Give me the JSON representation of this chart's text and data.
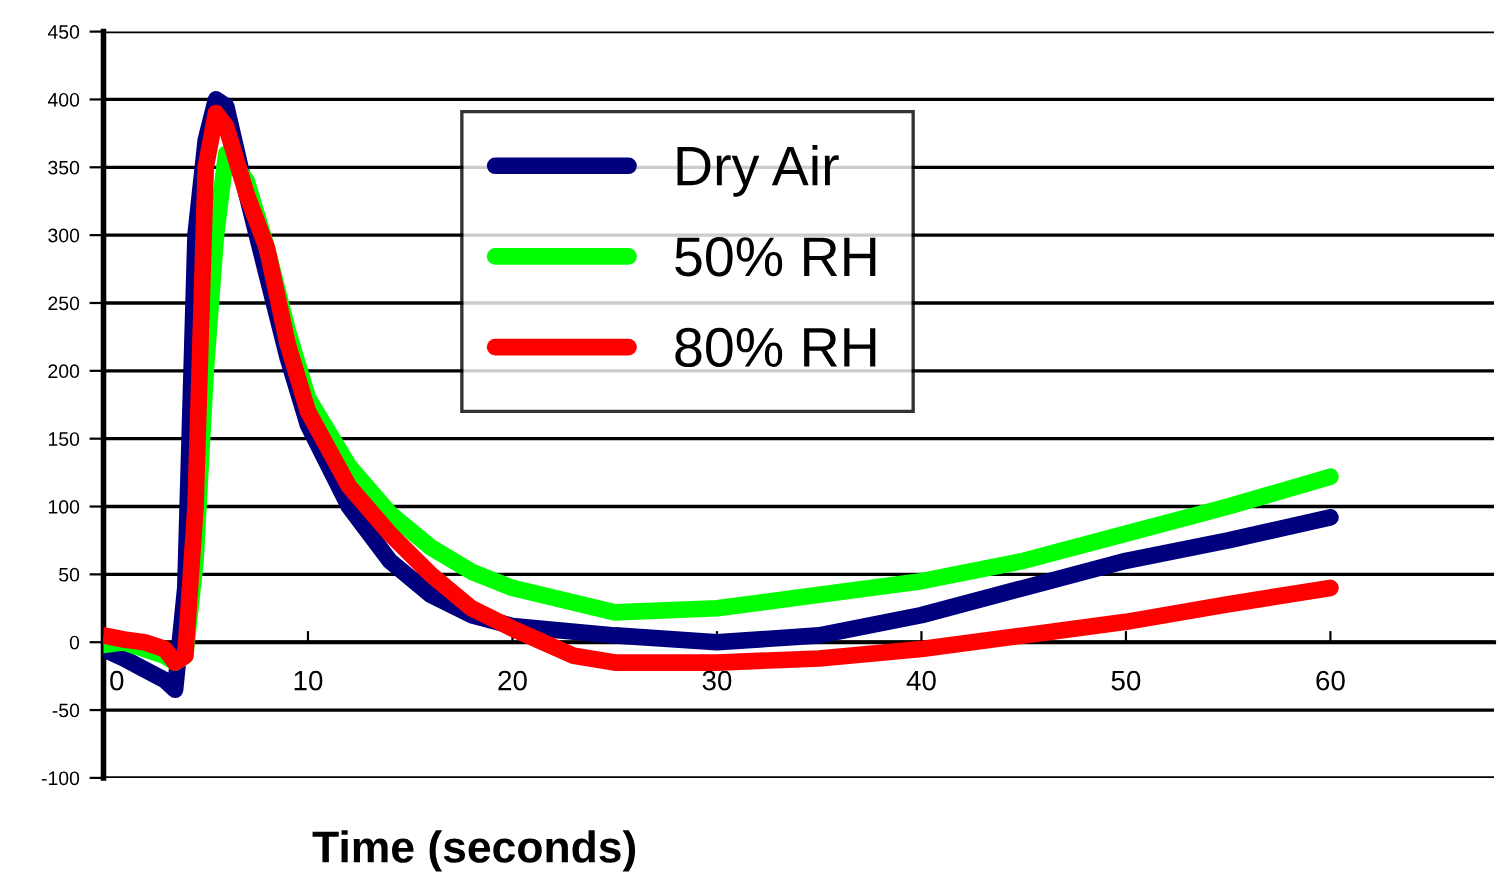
{
  "chart_data": {
    "type": "line",
    "xlabel": "Time (seconds)",
    "xlim": [
      0,
      68
    ],
    "xticks": [
      0,
      10,
      20,
      30,
      40,
      50,
      60
    ],
    "ylim": [
      -100,
      450
    ],
    "yticks": [
      -100,
      -50,
      0,
      50,
      100,
      150,
      200,
      250,
      300,
      350,
      400,
      450
    ],
    "grid": "y",
    "legend": "top",
    "marker": "none",
    "line_style": "solid",
    "series": [
      {
        "name": "Dry Air",
        "color": "#00007f",
        "x": [
          0,
          1,
          2,
          3,
          3.5,
          4,
          4.5,
          5,
          5.5,
          6,
          7,
          8,
          9,
          10,
          12,
          14,
          16,
          18,
          20,
          25,
          30,
          35,
          40,
          45,
          50,
          55,
          60
        ],
        "values": [
          -5,
          -12,
          -20,
          -28,
          -35,
          40,
          300,
          370,
          400,
          395,
          330,
          270,
          210,
          160,
          100,
          60,
          35,
          20,
          12,
          5,
          0,
          5,
          20,
          40,
          60,
          75,
          92
        ]
      },
      {
        "name": "50% RH",
        "color": "#00ff00",
        "x": [
          0,
          1,
          2,
          3,
          3.5,
          4,
          4.5,
          5,
          5.5,
          6,
          7,
          8,
          9,
          10,
          12,
          14,
          16,
          18,
          20,
          25,
          30,
          35,
          40,
          45,
          50,
          55,
          60
        ],
        "values": [
          -2,
          0,
          -5,
          -10,
          -15,
          -10,
          60,
          200,
          300,
          360,
          340,
          290,
          230,
          180,
          130,
          95,
          70,
          52,
          40,
          22,
          25,
          35,
          45,
          60,
          80,
          100,
          122
        ]
      },
      {
        "name": "80% RH",
        "color": "#ff0000",
        "x": [
          0,
          1,
          2,
          3,
          3.5,
          4,
          4.5,
          5,
          5.5,
          6,
          7,
          8,
          9,
          10,
          12,
          14,
          16,
          18,
          20,
          23,
          25,
          30,
          35,
          40,
          45,
          50,
          55,
          60
        ],
        "values": [
          5,
          2,
          0,
          -5,
          -15,
          -10,
          100,
          350,
          390,
          380,
          330,
          290,
          220,
          170,
          115,
          80,
          50,
          25,
          10,
          -10,
          -15,
          -15,
          -12,
          -5,
          5,
          15,
          28,
          40
        ]
      }
    ]
  }
}
